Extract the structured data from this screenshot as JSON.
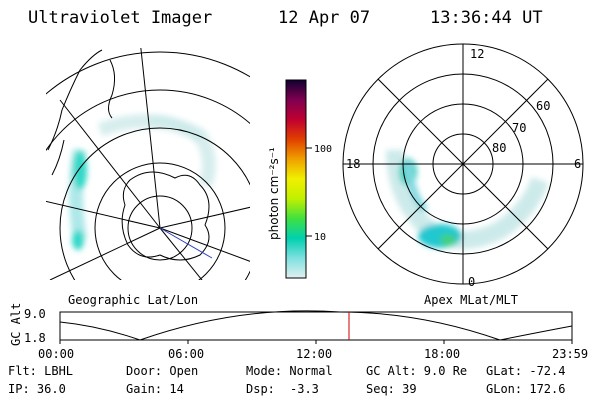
{
  "header": {
    "instrument": "Ultraviolet Imager",
    "date": "12 Apr 07",
    "time": "13:36:44 UT"
  },
  "left_panel": {
    "label": "Geographic Lat/Lon"
  },
  "right_panel": {
    "label": "Apex MLat/MLT",
    "mlt_labels": [
      "12",
      "18",
      "6",
      "0"
    ],
    "lat_labels": [
      "60",
      "70",
      "80"
    ]
  },
  "colorbar": {
    "unit_label": "photon cm⁻²s⁻¹",
    "ticks": [
      "100",
      "10"
    ],
    "scale": "log",
    "colors": [
      "#e0f0f0",
      "#80e0e0",
      "#00d0b0",
      "#40e040",
      "#c0f000",
      "#f0f000",
      "#f0a000",
      "#e04000",
      "#c00030",
      "#800050",
      "#100030"
    ]
  },
  "altitude_plot": {
    "ylabel": "GC Alt",
    "yticks": [
      "9.0",
      "1.8"
    ],
    "xticks": [
      "00:00",
      "06:00",
      "12:00",
      "18:00",
      "23:59"
    ],
    "marker_color": "#cc0000"
  },
  "info": {
    "filter": "Flt: LBHL",
    "ip": "IP: 36.0",
    "door": "Door: Open",
    "gain": "Gain: 14",
    "mode": "Mode: Normal",
    "dsp_label": "Dsp:",
    "dsp_value": "-3.3",
    "gc_alt": "GC Alt: 9.0 Re",
    "seq": "Seq: 39",
    "glat": "GLat: -72.4",
    "glon": "GLon: 172.6"
  }
}
